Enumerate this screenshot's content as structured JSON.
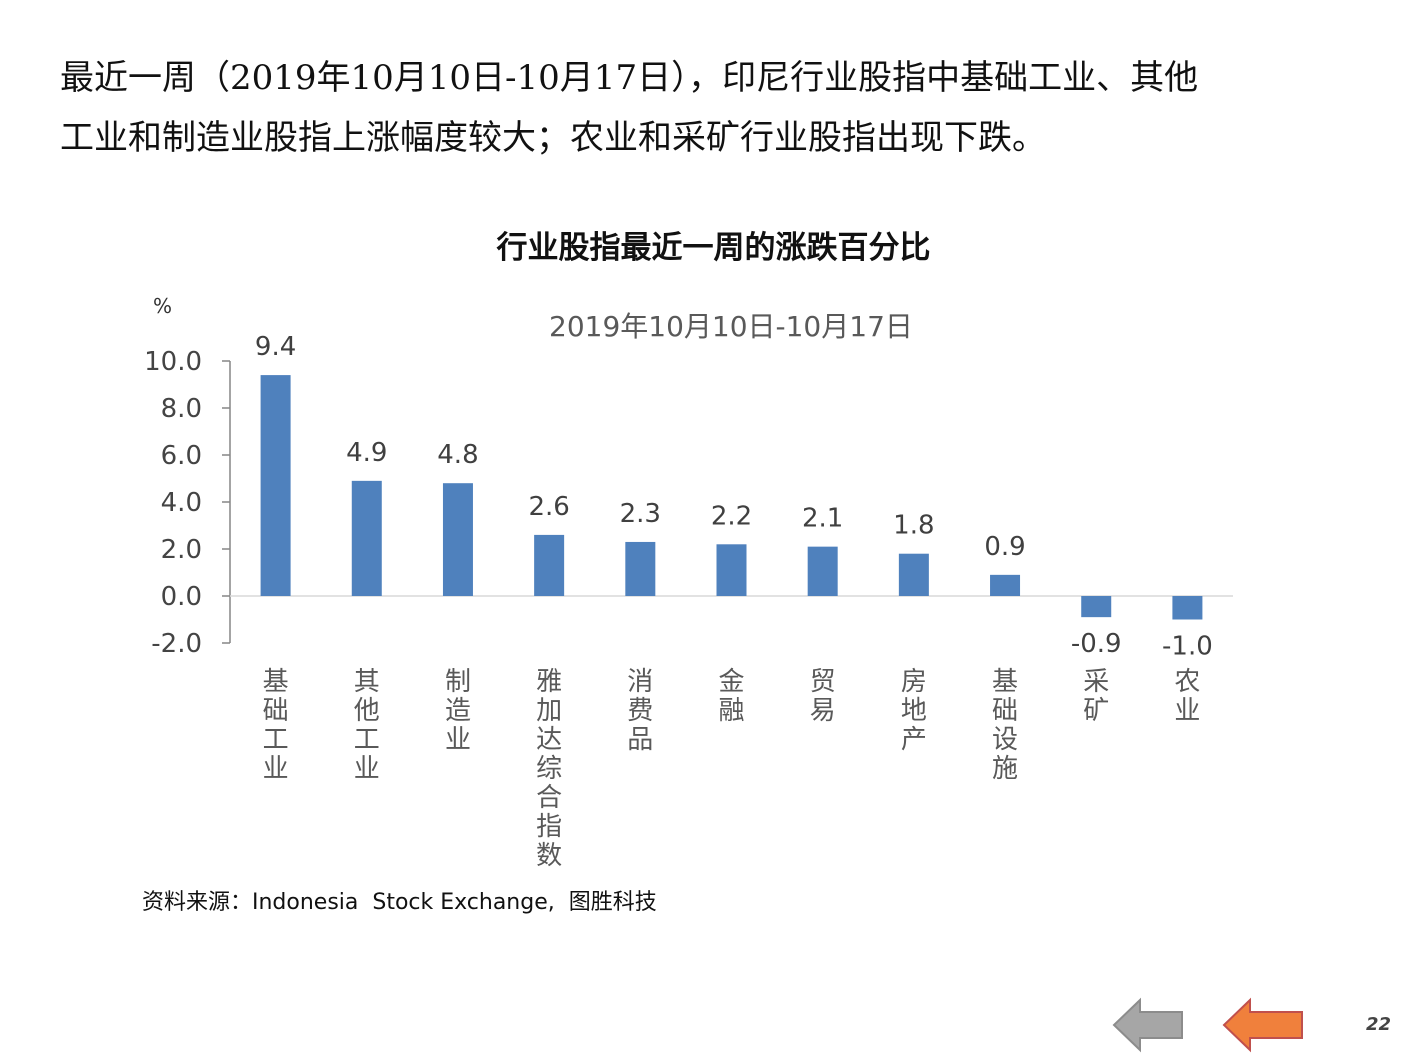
{
  "intro": {
    "line1": "最近一周（2019年10月10日-10月17日），印尼行业股指中基础工业、其他",
    "line2": "工业和制造业股指上涨幅度较大；农业和采矿行业股指出现下跌。"
  },
  "chart_data": {
    "type": "bar",
    "title": "行业股指最近一周的涨跌百分比",
    "subtitle": "2019年10月10日-10月17日",
    "ylabel": "%",
    "categories": [
      "基础工业",
      "其他工业",
      "制造业",
      "雅加达综合指数",
      "消费品",
      "金融",
      "贸易",
      "房地产",
      "基础设施",
      "采矿",
      "农业"
    ],
    "values": [
      9.4,
      4.9,
      4.8,
      2.6,
      2.3,
      2.2,
      2.1,
      1.8,
      0.9,
      -0.9,
      -1.0
    ],
    "value_labels": [
      "9.4",
      "4.9",
      "4.8",
      "2.6",
      "2.3",
      "2.2",
      "2.1",
      "1.8",
      "0.9",
      "-0.9",
      "-1.0"
    ],
    "yticks": [
      "10.0",
      "8.0",
      "6.0",
      "4.0",
      "2.0",
      "0.0",
      "-2.0"
    ],
    "ytick_values": [
      10,
      8,
      6,
      4,
      2,
      0,
      -2
    ],
    "ylim": [
      -2,
      10
    ],
    "grid": false,
    "bar_color": "#4f81bd"
  },
  "source": "资料来源：Indonesia  Stock Exchange,  图胜科技",
  "nav": {
    "prev_icon": "left-arrow-icon",
    "next_icon": "left-arrow-icon",
    "prev_color": "#a6a6a6",
    "next_color": "#f0803c"
  },
  "page_number": "22"
}
